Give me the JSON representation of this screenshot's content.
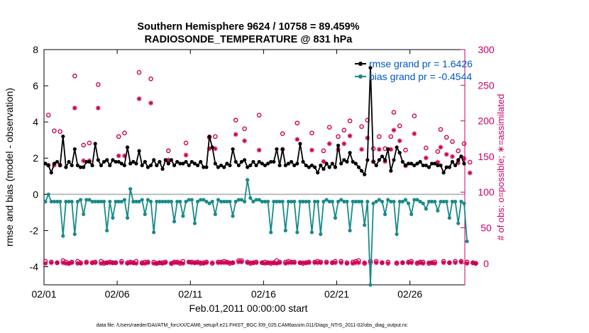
{
  "chart_data": {
    "type": "line",
    "title": "Southern Hemisphere 9624 / 10758 = 89.459%",
    "subtitle": "RADIOSONDE_TEMPERATURE @ 831 hPa",
    "xlabel": "Feb.01,2011 00:00:00 start",
    "ylabel": "rmse and bias (model - observation)",
    "ylabel_right": "# of obs: o=possible; ∗=assimilated",
    "xlim": [
      0,
      28.75
    ],
    "ylim": [
      -5,
      8
    ],
    "ylim_right": [
      -30,
      300
    ],
    "x_ticks": [
      0,
      5,
      10,
      15,
      20,
      25
    ],
    "x_tick_labels": [
      "02/01",
      "02/06",
      "02/11",
      "02/16",
      "02/21",
      "02/26"
    ],
    "y_ticks": [
      -4,
      -2,
      0,
      2,
      4,
      6,
      8
    ],
    "y_ticks_right": [
      0,
      50,
      100,
      150,
      200,
      250,
      300
    ],
    "footnote": "data file: /Users/raeder/DAI/ATM_forcXX/CAM6_setup/f.e21.FHIST_BGC.f09_025.CAM6assim.011/Diags_NTrS_2011-02/obs_diag_output.nc",
    "colors": {
      "rmse": "#000000",
      "bias": "#1a8a8a",
      "obs": "#cc0055",
      "zero_line": "#b0b0b0",
      "legend_text": "#0055cc",
      "right_axis": "#cc0066"
    },
    "series": [
      {
        "name": "rmse grand pr = 1.6426",
        "axis": "left",
        "values": [
          1.7,
          1.6,
          1.2,
          1.7,
          1.8,
          1.6,
          3.2,
          1.5,
          1.8,
          1.6,
          2.5,
          1.6,
          1.5,
          1.5,
          1.8,
          1.8,
          1.6,
          2.8,
          1.9,
          1.6,
          1.8,
          1.9,
          1.6,
          1.9,
          1.8,
          1.8,
          1.7,
          1.6,
          2.6,
          1.7,
          1.8,
          1.7,
          2.4,
          1.6,
          1.8,
          1.5,
          1.6,
          1.9,
          1.6,
          1.8,
          1.4,
          1.9,
          1.7,
          1.9,
          1.6,
          1.8,
          1.7,
          1.7,
          1.8,
          1.6,
          1.8,
          1.7,
          1.6,
          1.8,
          1.5,
          1.5,
          3.2,
          2.6,
          1.7,
          1.5,
          1.6,
          1.5,
          1.7,
          1.6,
          2.5,
          1.8,
          1.6,
          1.8,
          1.9,
          1.5,
          1.6,
          1.8,
          1.6,
          1.8,
          1.7,
          1.6,
          1.7,
          1.8,
          1.8,
          2.5,
          1.6,
          2.5,
          1.6,
          1.7,
          1.8,
          1.6,
          1.7,
          2.8,
          1.8,
          1.6,
          1.5,
          1.6,
          1.5,
          1.2,
          1.6,
          1.4,
          1.7,
          1.5,
          1.7,
          1.5,
          2.7,
          1.7,
          1.9,
          1.8,
          2.3,
          1.8,
          1.7,
          1.5,
          1.3,
          1.1,
          1.9,
          7.0,
          1.8,
          1.6,
          1.9,
          2.1,
          1.9,
          2.5,
          1.3,
          1.9,
          2.6,
          2.3,
          1.8,
          1.6,
          1.7,
          1.7,
          1.6,
          1.7,
          1.8,
          1.6,
          1.6,
          1.5,
          1.7,
          1.7,
          1.6,
          1.6,
          1.2,
          1.5,
          1.5,
          1.8,
          1.6,
          1.9,
          2.1,
          1.7
        ]
      },
      {
        "name": "bias grand pr = -0.4544",
        "axis": "left",
        "values": [
          -0.4,
          0.0,
          -0.4,
          -0.4,
          -0.4,
          -0.4,
          -2.3,
          -0.4,
          -0.4,
          -0.4,
          -2.2,
          -0.4,
          -0.3,
          -1.1,
          -0.3,
          -0.3,
          -0.4,
          -0.4,
          -0.4,
          -0.4,
          -0.4,
          -2.0,
          -0.4,
          -1.3,
          -0.4,
          -0.4,
          -0.4,
          -0.3,
          -1.3,
          0.3,
          -0.4,
          -0.4,
          -0.4,
          -0.3,
          -1.1,
          -0.3,
          -0.4,
          -2.1,
          -0.4,
          -0.4,
          -0.4,
          -0.4,
          -0.4,
          -0.4,
          -1.5,
          -0.4,
          -0.4,
          -1.2,
          -0.4,
          -0.3,
          -0.3,
          -1.6,
          -0.4,
          -0.3,
          -0.3,
          -0.4,
          -0.5,
          -0.4,
          -1.1,
          -0.3,
          -0.4,
          -0.4,
          -0.4,
          -0.4,
          -1.2,
          -0.4,
          -0.3,
          -0.3,
          -0.4,
          0.8,
          -0.2,
          -0.4,
          -0.3,
          -0.3,
          -0.4,
          -0.4,
          -0.4,
          -2.1,
          -0.4,
          -0.4,
          -0.4,
          -0.4,
          -2.0,
          -0.4,
          -0.4,
          -0.4,
          -2.1,
          -0.4,
          -0.4,
          -0.4,
          -0.4,
          -2.1,
          -0.4,
          -0.4,
          -2.2,
          -0.4,
          -0.3,
          -0.4,
          -0.4,
          -1.3,
          -0.4,
          -0.3,
          -0.4,
          -0.4,
          -2.0,
          -0.4,
          -0.4,
          -0.4,
          -0.4,
          -1.7,
          -0.4,
          -5.0,
          -0.5,
          -0.4,
          -0.3,
          -0.4,
          -1.1,
          -0.3,
          -0.4,
          -0.4,
          -2.2,
          -0.4,
          -0.4,
          -0.3,
          -0.5,
          -1.1,
          -0.3,
          -0.3,
          -0.4,
          -0.5,
          -0.8,
          -0.4,
          -0.4,
          -0.4,
          -0.9,
          -0.4,
          -0.4,
          -0.4,
          -1.3,
          -0.4,
          -0.4,
          -1.6,
          -0.4,
          -0.5,
          -2.6
        ]
      },
      {
        "name": "possible obs (o)",
        "axis": "right",
        "values": [
          3,
          208,
          2,
          186,
          1,
          185,
          4,
          2,
          0,
          2,
          263,
          3,
          1,
          166,
          2,
          169,
          1,
          2,
          251,
          3,
          0,
          1,
          2,
          1,
          1,
          178,
          3,
          183,
          1,
          2,
          1,
          3,
          268,
          1,
          2,
          2,
          259,
          2,
          0,
          1,
          1,
          2,
          158,
          0,
          2,
          2,
          0,
          3,
          169,
          2,
          2,
          1,
          2,
          0,
          1,
          2,
          177,
          0,
          178,
          2,
          2,
          3,
          2,
          0,
          1,
          201,
          4,
          4,
          189,
          2,
          0,
          1,
          2,
          208,
          1,
          2,
          1,
          0,
          1,
          4,
          2,
          182,
          2,
          3,
          2,
          2,
          197,
          1,
          0,
          1,
          2,
          183,
          2,
          3,
          2,
          158,
          2,
          191,
          1,
          3,
          178,
          3,
          187,
          1,
          200,
          2,
          3,
          4,
          192,
          0,
          201,
          3,
          161,
          3,
          178,
          1,
          161,
          2,
          178,
          212,
          0,
          193,
          1,
          159,
          2,
          3,
          207,
          0,
          2,
          2,
          162,
          0,
          1,
          2,
          157,
          188,
          3,
          177,
          1,
          171,
          3,
          158,
          3,
          168,
          2,
          142,
          1,
          0
        ]
      },
      {
        "name": "assimilated obs (*)",
        "axis": "right",
        "values": [
          0,
          138,
          1,
          138,
          1,
          138,
          1,
          0,
          0,
          1,
          218,
          0,
          0,
          144,
          1,
          144,
          1,
          1,
          218,
          0,
          1,
          1,
          1,
          1,
          1,
          151,
          1,
          151,
          0,
          1,
          1,
          0,
          231,
          0,
          0,
          1,
          225,
          0,
          0,
          1,
          0,
          1,
          145,
          0,
          1,
          1,
          1,
          0,
          152,
          2,
          1,
          1,
          1,
          1,
          0,
          1,
          161,
          1,
          161,
          1,
          1,
          1,
          1,
          1,
          1,
          181,
          2,
          2,
          172,
          1,
          1,
          1,
          1,
          159,
          1,
          0,
          1,
          1,
          1,
          0,
          1,
          160,
          0,
          1,
          1,
          1,
          174,
          1,
          1,
          1,
          1,
          159,
          1,
          1,
          1,
          143,
          1,
          168,
          1,
          1,
          160,
          1,
          168,
          0,
          179,
          0,
          1,
          1,
          160,
          1,
          176,
          1,
          143,
          1,
          160,
          1,
          143,
          0,
          160,
          187,
          1,
          172,
          1,
          137,
          1,
          1,
          182,
          1,
          1,
          0,
          148,
          1,
          1,
          0,
          142,
          163,
          1,
          153,
          1,
          150,
          1,
          141,
          2,
          147,
          0,
          127,
          1,
          0
        ]
      }
    ]
  }
}
